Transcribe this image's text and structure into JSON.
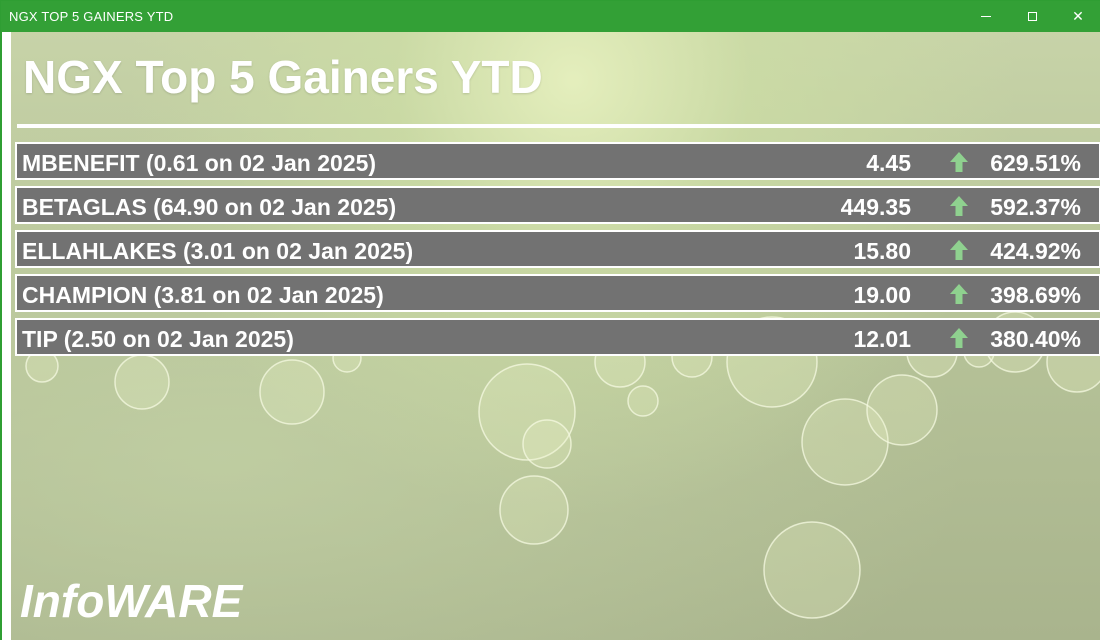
{
  "window": {
    "title": "NGX TOP 5 GAINERS YTD",
    "controls": {
      "minimize": "minimize-icon",
      "maximize": "maximize-icon",
      "close": "close-icon"
    }
  },
  "heading": "NGX Top 5 Gainers YTD",
  "gainers": [
    {
      "label": "MBENEFIT (0.61 on 02 Jan 2025)",
      "price": "4.45",
      "change": "629.51%"
    },
    {
      "label": "BETAGLAS (64.90 on 02 Jan 2025)",
      "price": "449.35",
      "change": "592.37%"
    },
    {
      "label": "ELLAHLAKES (3.01 on 02 Jan 2025)",
      "price": "15.80",
      "change": "424.92%"
    },
    {
      "label": "CHAMPION (3.81 on 02 Jan 2025)",
      "price": "19.00",
      "change": "398.69%"
    },
    {
      "label": "TIP (2.50 on 02 Jan 2025)",
      "price": "12.01",
      "change": "380.40%"
    }
  ],
  "brand": "InfoWARE",
  "colors": {
    "titlebar": "#33a036",
    "row_background": "#727272",
    "arrow_up": "#8fd18f"
  }
}
